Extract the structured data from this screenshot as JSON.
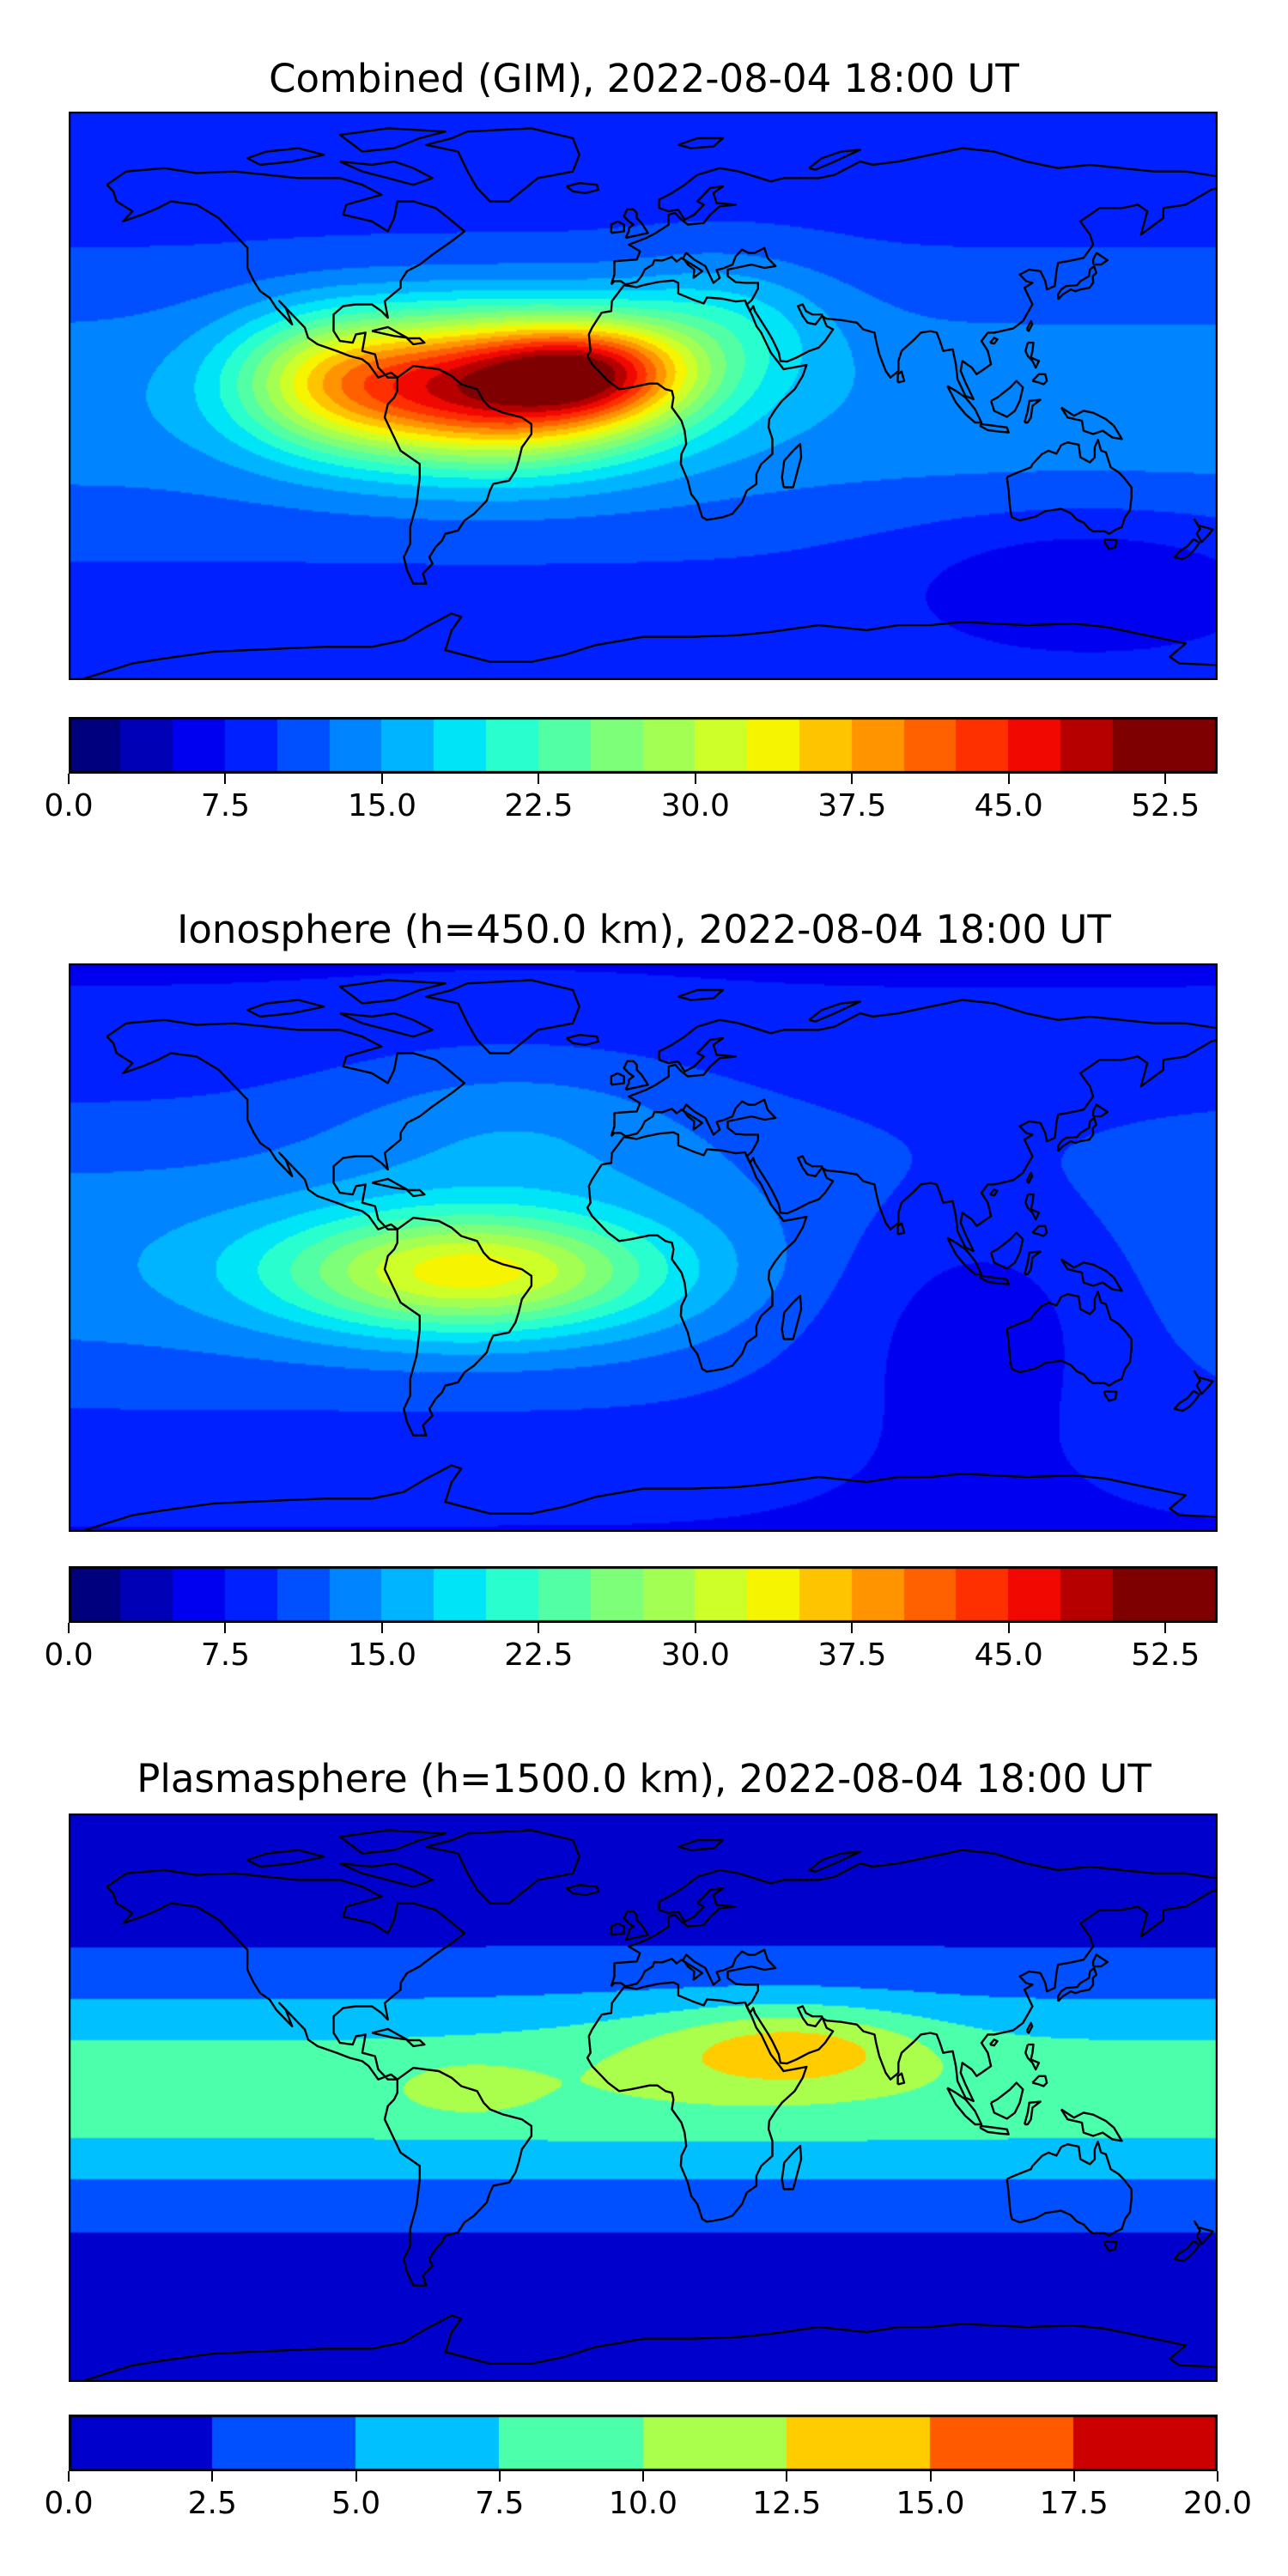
{
  "panels": [
    {
      "title": "Combined (GIM), 2022-08-04 18:00 UT",
      "field": "combined",
      "colorbar": {
        "min": 0.0,
        "max": 55.0,
        "step": 2.5,
        "colormap": "jet",
        "tick_labels": [
          "0.0",
          "7.5",
          "15.0",
          "22.5",
          "30.0",
          "37.5",
          "45.0",
          "52.5"
        ]
      }
    },
    {
      "title": "Ionosphere  (h=450.0 km), 2022-08-04 18:00 UT",
      "field": "ionosphere",
      "colorbar": {
        "min": 0.0,
        "max": 55.0,
        "step": 2.5,
        "colormap": "jet",
        "tick_labels": [
          "0.0",
          "7.5",
          "15.0",
          "22.5",
          "30.0",
          "37.5",
          "45.0",
          "52.5"
        ]
      }
    },
    {
      "title": "Plasmasphere (h=1500.0 km), 2022-08-04 18:00 UT",
      "field": "plasmasphere",
      "colorbar": {
        "min": 0.0,
        "max": 20.0,
        "step": 2.5,
        "colormap": "jet",
        "tick_labels": [
          "0.0",
          "2.5",
          "5.0",
          "7.5",
          "10.0",
          "12.5",
          "15.0",
          "17.5",
          "20.0"
        ]
      }
    }
  ],
  "colors": {
    "jet22": [
      "#00007f",
      "#0000b6",
      "#0000f1",
      "#0020ff",
      "#0050ff",
      "#0084ff",
      "#00b4ff",
      "#00e4f7",
      "#29ffce",
      "#53ffa4",
      "#7dff7a",
      "#a4ff53",
      "#ceff29",
      "#f7f400",
      "#ffc400",
      "#ff9400",
      "#ff6000",
      "#ff3000",
      "#f10800",
      "#b60000",
      "#7f0000",
      "#7f0000"
    ],
    "jet8": [
      "#0000cd",
      "#0050ff",
      "#00c0ff",
      "#4cffaa",
      "#aaff4c",
      "#ffcc00",
      "#ff5a00",
      "#cd0000"
    ],
    "coastline": "#000000"
  }
}
